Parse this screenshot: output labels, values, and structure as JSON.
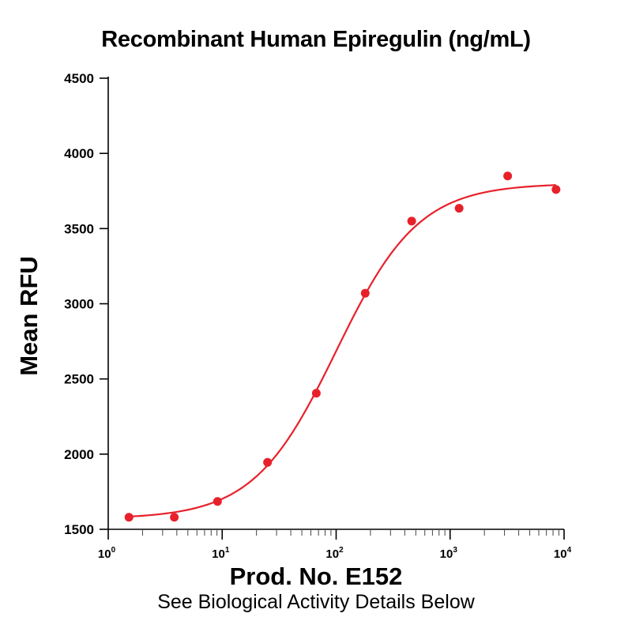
{
  "chart_data": {
    "type": "scatter",
    "title": "Recombinant Human Epiregulin (ng/mL)",
    "xlabel": "Prod. No. E152",
    "subtitle": "See Biological Activity Details Below",
    "ylabel": "Mean RFU",
    "x_scale": "log",
    "xlim": [
      1,
      10000
    ],
    "ylim": [
      1500,
      4500
    ],
    "x_tick_labels": [
      {
        "value": 1,
        "base": "10",
        "exp": "0"
      },
      {
        "value": 10,
        "base": "10",
        "exp": "1"
      },
      {
        "value": 100,
        "base": "10",
        "exp": "2"
      },
      {
        "value": 1000,
        "base": "10",
        "exp": "3"
      },
      {
        "value": 10000,
        "base": "10",
        "exp": "4"
      }
    ],
    "y_ticks": [
      1500,
      2000,
      2500,
      3000,
      3500,
      4000,
      4500
    ],
    "y_tick_labels": [
      "1500",
      "2000",
      "2500",
      "3000",
      "3500",
      "4000",
      "4500"
    ],
    "grid": false,
    "series": [
      {
        "points": [
          {
            "x": 1.52,
            "y": 1580
          },
          {
            "x": 3.8,
            "y": 1580
          },
          {
            "x": 9.1,
            "y": 1685
          },
          {
            "x": 25,
            "y": 1945
          },
          {
            "x": 67,
            "y": 2405
          },
          {
            "x": 180,
            "y": 3070
          },
          {
            "x": 460,
            "y": 3550
          },
          {
            "x": 1200,
            "y": 3635
          },
          {
            "x": 3200,
            "y": 3850
          },
          {
            "x": 8500,
            "y": 3760
          }
        ],
        "color": "#e8202a"
      }
    ],
    "fit_curve": {
      "model": "4-parameter logistic",
      "bottom": 1570,
      "top": 3800,
      "ec50": 100,
      "hill": 1.2,
      "color": "#e8202a"
    }
  }
}
